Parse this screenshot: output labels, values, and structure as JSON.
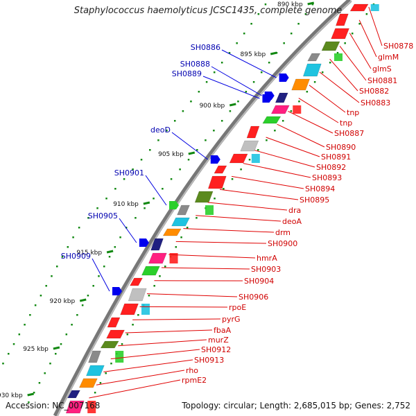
{
  "title": "Staphylococcus haemolyticus JCSC1435, complete genome",
  "footer": {
    "accession": "Accession: NC_007168",
    "topology": "Topology: circular; Length: 2,685,015 bp; Genes: 2,752"
  },
  "colors": {
    "label_red": "#d00000",
    "label_blue": "#0000b0",
    "leader_red": "#e00000",
    "leader_blue": "#0000e0",
    "ticks": "#118811",
    "backbone": "#777777"
  },
  "ticks": [
    {
      "label": "890 kbp"
    },
    {
      "label": "895 kbp"
    },
    {
      "label": "900 kbp"
    },
    {
      "label": "905 kbp"
    },
    {
      "label": "910 kbp"
    },
    {
      "label": "915 kbp"
    },
    {
      "label": "920 kbp"
    },
    {
      "label": "925 kbp"
    },
    {
      "label": "930 kbp"
    }
  ],
  "blue_labels": [
    {
      "name": "SH0886"
    },
    {
      "name": "SH0888"
    },
    {
      "name": "SH0889"
    },
    {
      "name": "deoD"
    },
    {
      "name": "SH0901"
    },
    {
      "name": "SH0905"
    },
    {
      "name": "SH0909"
    }
  ],
  "red_labels": [
    {
      "name": "SH0878"
    },
    {
      "name": "glmM"
    },
    {
      "name": "glmS"
    },
    {
      "name": "SH0881"
    },
    {
      "name": "SH0882"
    },
    {
      "name": "SH0883"
    },
    {
      "name": "tnp"
    },
    {
      "name": "tnp"
    },
    {
      "name": "SH0887"
    },
    {
      "name": "SH0890"
    },
    {
      "name": "SH0891"
    },
    {
      "name": "SH0892"
    },
    {
      "name": "SH0893"
    },
    {
      "name": "SH0894"
    },
    {
      "name": "SH0895"
    },
    {
      "name": "dra"
    },
    {
      "name": "deoA"
    },
    {
      "name": "drm"
    },
    {
      "name": "SH0900"
    },
    {
      "name": "hmrA"
    },
    {
      "name": "SH0903"
    },
    {
      "name": "SH0904"
    },
    {
      "name": "SH0906"
    },
    {
      "name": "rpoE"
    },
    {
      "name": "pyrG"
    },
    {
      "name": "fbaA"
    },
    {
      "name": "murZ"
    },
    {
      "name": "SH0912"
    },
    {
      "name": "SH0913"
    },
    {
      "name": "rho"
    },
    {
      "name": "rpmE2"
    }
  ]
}
